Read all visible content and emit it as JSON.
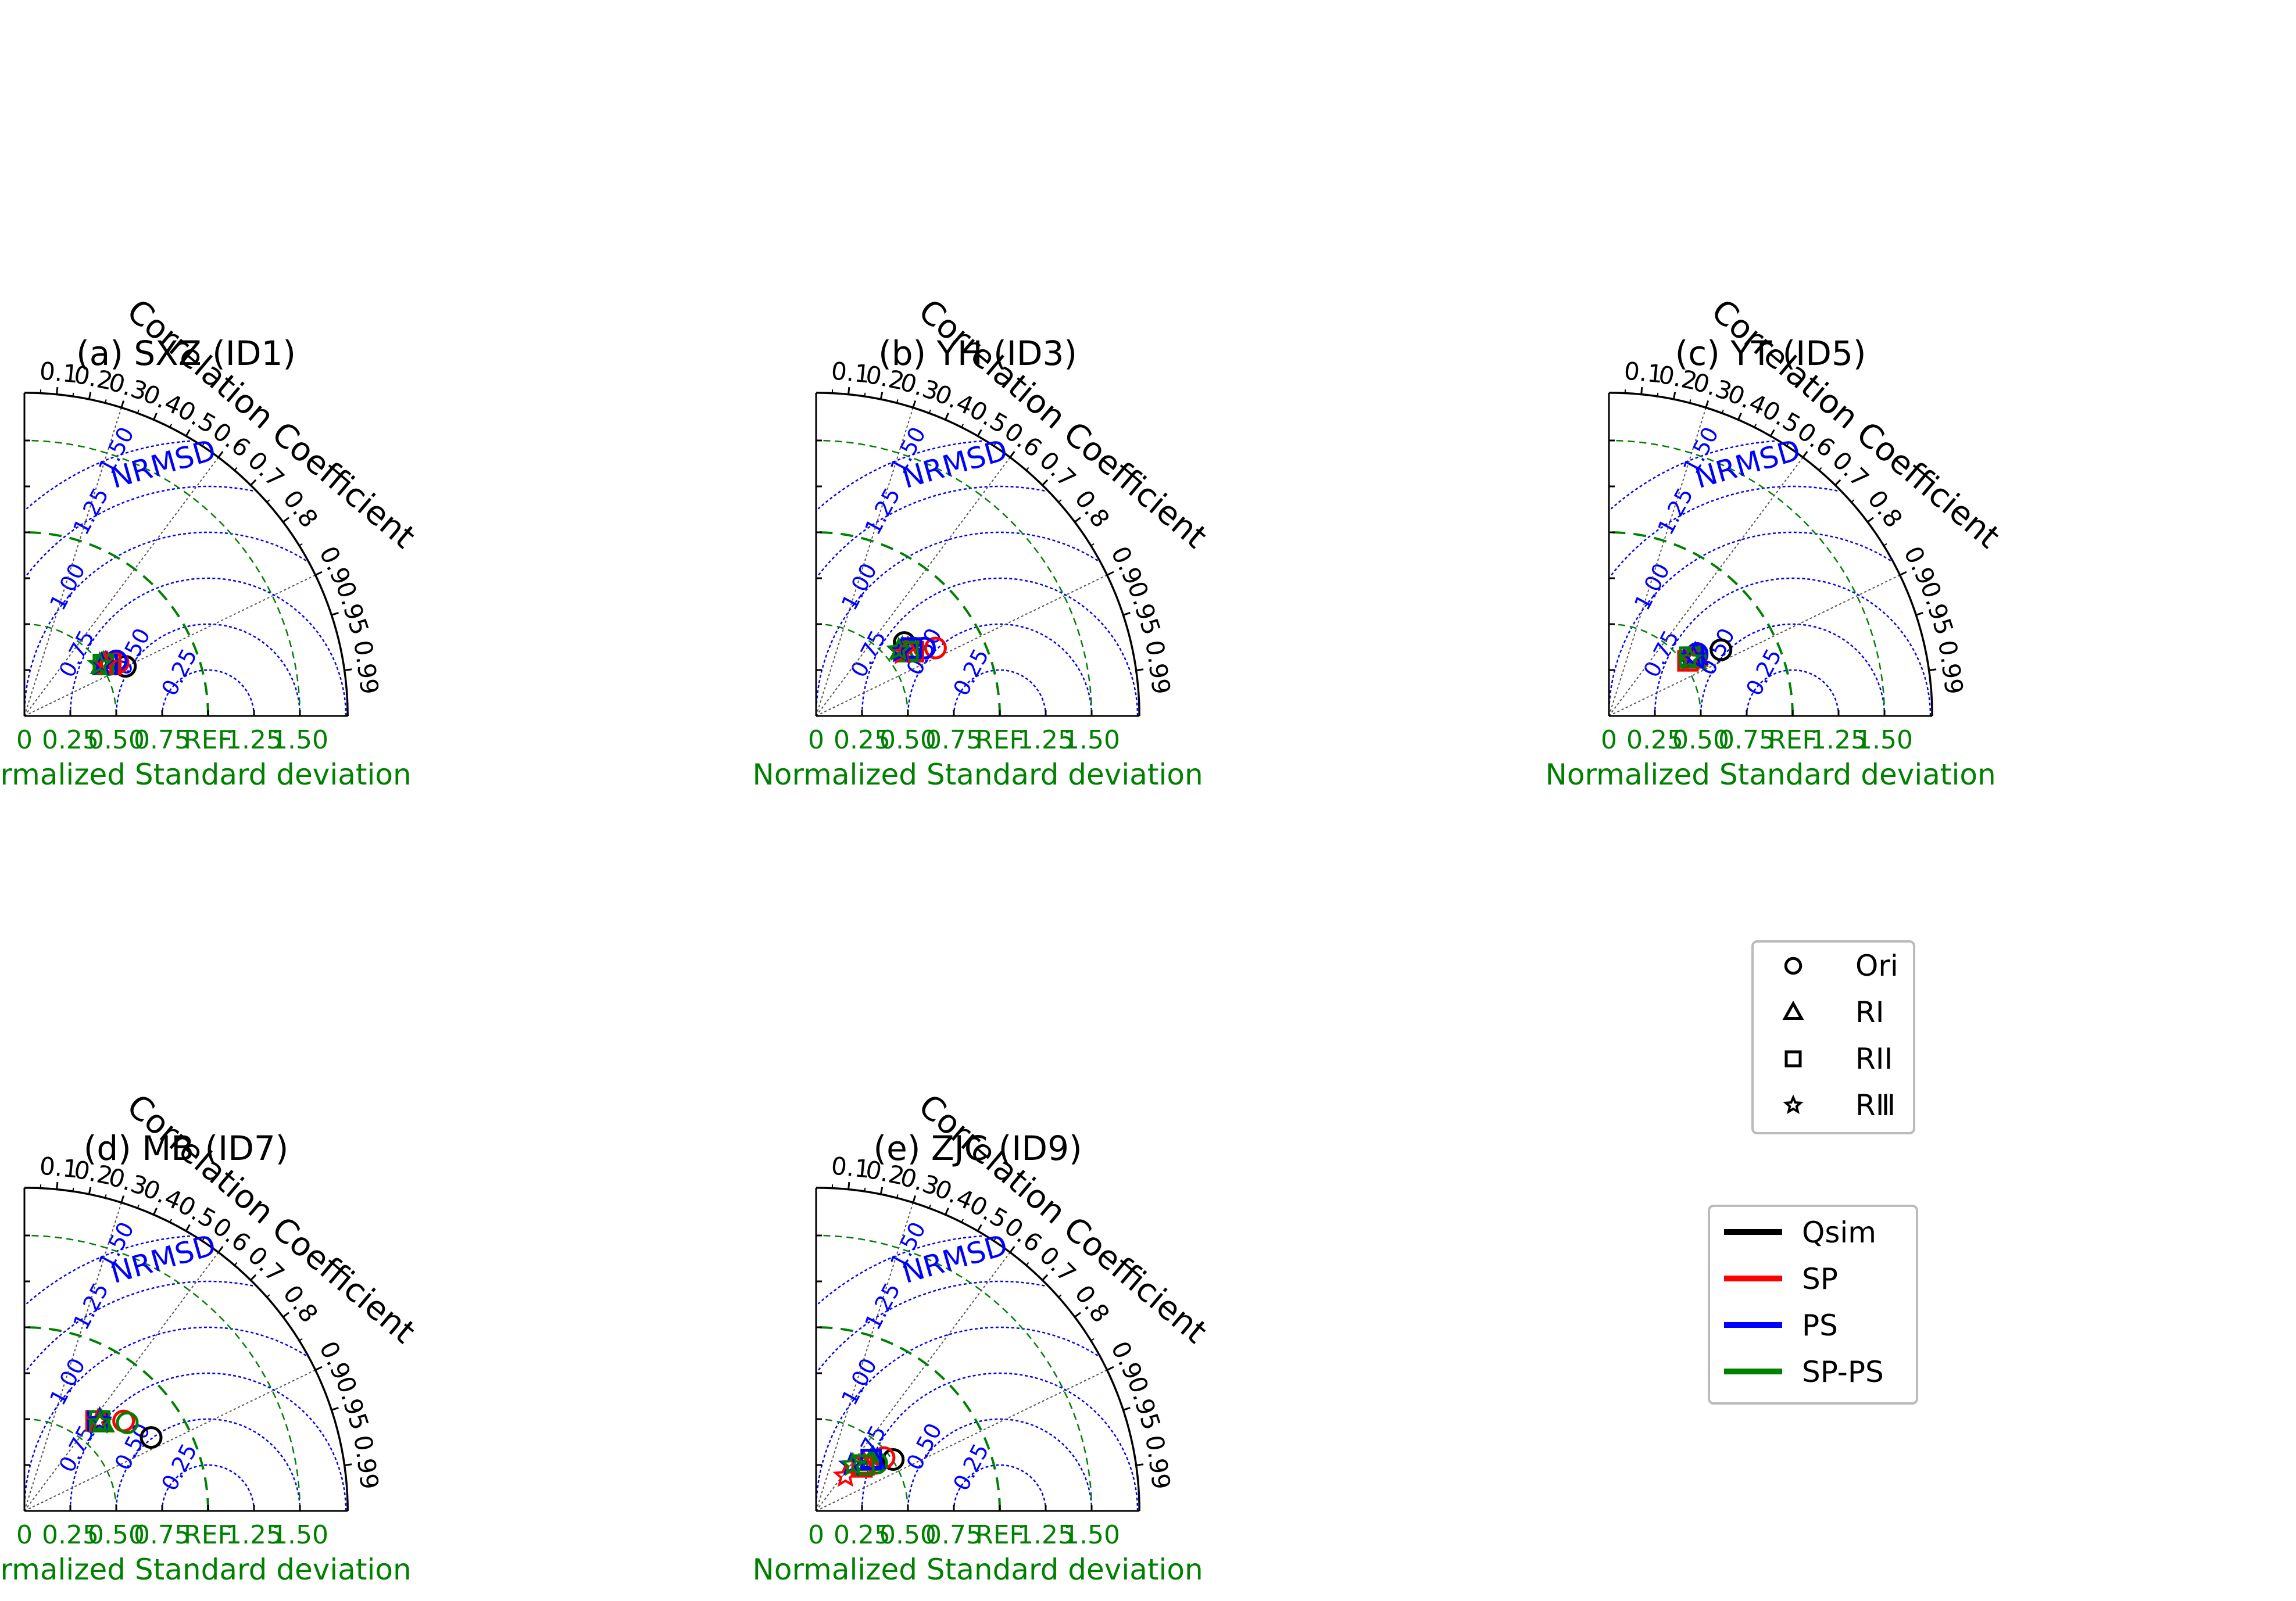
{
  "colors": {
    "Qsim": "#000000",
    "SP": "#ff0000",
    "PS": "#0000ff",
    "SP-PS": "#008000",
    "axis": "#000000",
    "rms": "#0000ff",
    "std": "#008000",
    "corr": "#555555"
  },
  "common": {
    "xlabel": "Normalized Standard deviation",
    "corr_title": "Correlation Coefficient",
    "rms_title": "NRMSD",
    "x_ticks": [
      "0",
      "0.25",
      "0.50",
      "0.75",
      "REF",
      "1.25",
      "1.50"
    ],
    "x_tick_values": [
      0,
      0.25,
      0.5,
      0.75,
      1.0,
      1.25,
      1.5
    ],
    "corr_ticks": [
      "0.1",
      "0.2",
      "0.3",
      "0.4",
      "0.5",
      "0.6",
      "0.7",
      "0.8",
      "0.9",
      "0.95",
      "0.99"
    ],
    "corr_tick_values": [
      0.1,
      0.2,
      0.3,
      0.4,
      0.5,
      0.6,
      0.7,
      0.8,
      0.9,
      0.95,
      0.99
    ],
    "corr_lines": [
      0.3,
      0.6,
      0.9
    ],
    "rms_labels": [
      "0.25",
      "0.50",
      "0.75",
      "1.00",
      "1.25",
      "1.50"
    ],
    "rms_values": [
      0.25,
      0.5,
      0.75,
      1.0,
      1.25,
      1.5
    ],
    "std_circles": [
      0.5,
      1.0,
      1.5
    ]
  },
  "legend_markers": {
    "items": [
      {
        "label": "Ori",
        "marker": "circle"
      },
      {
        "label": "RI",
        "marker": "triangle"
      },
      {
        "label": "RII",
        "marker": "square"
      },
      {
        "label": "RⅢ",
        "marker": "star"
      }
    ]
  },
  "legend_lines": {
    "items": [
      {
        "label": "Qsim",
        "color": "#000000"
      },
      {
        "label": "SP",
        "color": "#ff0000"
      },
      {
        "label": "PS",
        "color": "#0000ff"
      },
      {
        "label": "SP-PS",
        "color": "#008000"
      }
    ]
  },
  "chart_data": [
    {
      "type": "scatter",
      "title": "(a) SXZ (ID1)",
      "xlabel": "Normalized Standard deviation",
      "xlim": [
        0,
        1.75
      ],
      "points": [
        {
          "series": "Qsim",
          "marker": "circle",
          "x": 0.55,
          "y": 0.27
        },
        {
          "series": "SP",
          "marker": "circle",
          "x": 0.51,
          "y": 0.29
        },
        {
          "series": "PS",
          "marker": "circle",
          "x": 0.5,
          "y": 0.3
        },
        {
          "series": "SP-PS",
          "marker": "circle",
          "x": 0.46,
          "y": 0.28
        },
        {
          "series": "SP",
          "marker": "triangle",
          "x": 0.45,
          "y": 0.28
        },
        {
          "series": "PS",
          "marker": "triangle",
          "x": 0.44,
          "y": 0.28
        },
        {
          "series": "SP-PS",
          "marker": "triangle",
          "x": 0.43,
          "y": 0.28
        },
        {
          "series": "SP",
          "marker": "square",
          "x": 0.47,
          "y": 0.28
        },
        {
          "series": "PS",
          "marker": "square",
          "x": 0.45,
          "y": 0.28
        },
        {
          "series": "SP-PS",
          "marker": "square",
          "x": 0.43,
          "y": 0.28
        },
        {
          "series": "SP",
          "marker": "star",
          "x": 0.44,
          "y": 0.28
        },
        {
          "series": "PS",
          "marker": "star",
          "x": 0.42,
          "y": 0.28
        },
        {
          "series": "SP-PS",
          "marker": "star",
          "x": 0.41,
          "y": 0.28
        }
      ]
    },
    {
      "type": "scatter",
      "title": "(b) YH (ID3)",
      "xlabel": "Normalized Standard deviation",
      "xlim": [
        0,
        1.75
      ],
      "points": [
        {
          "series": "Qsim",
          "marker": "circle",
          "x": 0.48,
          "y": 0.4
        },
        {
          "series": "SP",
          "marker": "circle",
          "x": 0.65,
          "y": 0.37
        },
        {
          "series": "PS",
          "marker": "circle",
          "x": 0.59,
          "y": 0.37
        },
        {
          "series": "SP-PS",
          "marker": "circle",
          "x": 0.53,
          "y": 0.37
        },
        {
          "series": "SP",
          "marker": "triangle",
          "x": 0.5,
          "y": 0.36
        },
        {
          "series": "PS",
          "marker": "triangle",
          "x": 0.52,
          "y": 0.36
        },
        {
          "series": "SP-PS",
          "marker": "triangle",
          "x": 0.47,
          "y": 0.36
        },
        {
          "series": "SP",
          "marker": "square",
          "x": 0.53,
          "y": 0.35
        },
        {
          "series": "PS",
          "marker": "square",
          "x": 0.52,
          "y": 0.37
        },
        {
          "series": "SP-PS",
          "marker": "square",
          "x": 0.5,
          "y": 0.35
        },
        {
          "series": "SP",
          "marker": "star",
          "x": 0.47,
          "y": 0.34
        },
        {
          "series": "PS",
          "marker": "star",
          "x": 0.46,
          "y": 0.35
        },
        {
          "series": "SP-PS",
          "marker": "star",
          "x": 0.45,
          "y": 0.36
        }
      ]
    },
    {
      "type": "scatter",
      "title": "(c) YT (ID5)",
      "xlabel": "Normalized Standard deviation",
      "xlim": [
        0,
        1.75
      ],
      "points": [
        {
          "series": "Qsim",
          "marker": "circle",
          "x": 0.61,
          "y": 0.36
        },
        {
          "series": "SP",
          "marker": "circle",
          "x": 0.48,
          "y": 0.33
        },
        {
          "series": "PS",
          "marker": "circle",
          "x": 0.48,
          "y": 0.34
        },
        {
          "series": "SP-PS",
          "marker": "circle",
          "x": 0.47,
          "y": 0.32
        },
        {
          "series": "SP",
          "marker": "triangle",
          "x": 0.47,
          "y": 0.32
        },
        {
          "series": "PS",
          "marker": "triangle",
          "x": 0.47,
          "y": 0.33
        },
        {
          "series": "SP-PS",
          "marker": "triangle",
          "x": 0.46,
          "y": 0.31
        },
        {
          "series": "SP",
          "marker": "square",
          "x": 0.43,
          "y": 0.3
        },
        {
          "series": "PS",
          "marker": "square",
          "x": 0.46,
          "y": 0.32
        },
        {
          "series": "SP-PS",
          "marker": "square",
          "x": 0.44,
          "y": 0.32
        },
        {
          "series": "SP",
          "marker": "star",
          "x": 0.45,
          "y": 0.31
        },
        {
          "series": "PS",
          "marker": "star",
          "x": 0.46,
          "y": 0.32
        },
        {
          "series": "SP-PS",
          "marker": "star",
          "x": 0.44,
          "y": 0.31
        }
      ]
    },
    {
      "type": "scatter",
      "title": "(d) MB (ID7)",
      "xlabel": "Normalized Standard deviation",
      "xlim": [
        0,
        1.75
      ],
      "points": [
        {
          "series": "Qsim",
          "marker": "circle",
          "x": 0.69,
          "y": 0.4
        },
        {
          "series": "SP",
          "marker": "circle",
          "x": 0.54,
          "y": 0.49
        },
        {
          "series": "SP-PS",
          "marker": "circle",
          "x": 0.56,
          "y": 0.48
        },
        {
          "series": "SP",
          "marker": "triangle",
          "x": 0.41,
          "y": 0.49
        },
        {
          "series": "PS",
          "marker": "triangle",
          "x": 0.41,
          "y": 0.49
        },
        {
          "series": "SP-PS",
          "marker": "triangle",
          "x": 0.42,
          "y": 0.48
        },
        {
          "series": "SP",
          "marker": "square",
          "x": 0.39,
          "y": 0.49
        },
        {
          "series": "PS",
          "marker": "square",
          "x": 0.4,
          "y": 0.49
        },
        {
          "series": "SP-PS",
          "marker": "square",
          "x": 0.41,
          "y": 0.49
        },
        {
          "series": "SP",
          "marker": "star",
          "x": 0.4,
          "y": 0.49
        },
        {
          "series": "PS",
          "marker": "star",
          "x": 0.41,
          "y": 0.49
        },
        {
          "series": "SP-PS",
          "marker": "star",
          "x": 0.41,
          "y": 0.48
        }
      ]
    },
    {
      "type": "scatter",
      "title": "(e) ZJC (ID9)",
      "xlabel": "Normalized Standard deviation",
      "xlim": [
        0,
        1.75
      ],
      "points": [
        {
          "series": "Qsim",
          "marker": "circle",
          "x": 0.42,
          "y": 0.28
        },
        {
          "series": "SP",
          "marker": "circle",
          "x": 0.37,
          "y": 0.29
        },
        {
          "series": "SP-PS",
          "marker": "circle",
          "x": 0.33,
          "y": 0.26
        },
        {
          "series": "PS",
          "marker": "triangle",
          "x": 0.31,
          "y": 0.28
        },
        {
          "series": "SP",
          "marker": "triangle",
          "x": 0.26,
          "y": 0.25
        },
        {
          "series": "SP-PS",
          "marker": "triangle",
          "x": 0.3,
          "y": 0.27
        },
        {
          "series": "SP",
          "marker": "square",
          "x": 0.25,
          "y": 0.24
        },
        {
          "series": "PS",
          "marker": "square",
          "x": 0.3,
          "y": 0.28
        },
        {
          "series": "SP-PS",
          "marker": "square",
          "x": 0.26,
          "y": 0.25
        },
        {
          "series": "PS",
          "marker": "star",
          "x": 0.19,
          "y": 0.25
        },
        {
          "series": "SP",
          "marker": "star",
          "x": 0.16,
          "y": 0.19
        },
        {
          "series": "SP-PS",
          "marker": "star",
          "x": 0.2,
          "y": 0.25
        }
      ]
    }
  ]
}
